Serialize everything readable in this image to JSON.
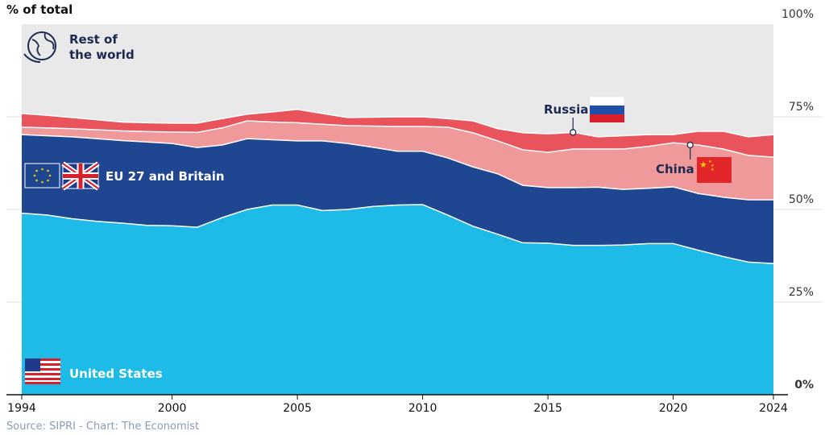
{
  "chart_data": {
    "type": "area",
    "stacked": true,
    "normalized": true,
    "title": "% of total",
    "source": "Source: SIPRI - Chart: The Economist",
    "x": [
      1994,
      1995,
      1996,
      1997,
      1998,
      1999,
      2000,
      2001,
      2002,
      2003,
      2004,
      2005,
      2006,
      2007,
      2008,
      2009,
      2010,
      2011,
      2012,
      2013,
      2014,
      2015,
      2016,
      2017,
      2018,
      2019,
      2020,
      2021,
      2022,
      2023,
      2024
    ],
    "x_ticks": [
      "1994",
      "2000",
      "2005",
      "2010",
      "2015",
      "2020",
      "2024"
    ],
    "y_ticks": [
      "100%",
      "75%",
      "50%",
      "25%",
      "0%"
    ],
    "ylim": [
      0,
      100
    ],
    "series": [
      {
        "name": "United States",
        "color": "#1ebbe9",
        "values": [
          49,
          48.5,
          47.5,
          46.8,
          46.3,
          45.7,
          45.6,
          45.2,
          47.8,
          50,
          51.2,
          51.2,
          49.7,
          50,
          50.8,
          51.2,
          51.3,
          48.5,
          45.5,
          43.3,
          41,
          40.9,
          40.3,
          40.3,
          40.4,
          40.8,
          40.8,
          39,
          37.3,
          35.8,
          35.4
        ]
      },
      {
        "name": "EU 27 and Britain",
        "color": "#1f4691",
        "values": [
          21.2,
          21.4,
          22.1,
          22.3,
          22.3,
          22.5,
          22.2,
          21.5,
          19.6,
          19.1,
          17.6,
          17.3,
          18.8,
          17.8,
          16,
          14.5,
          14.4,
          15.4,
          16,
          16.3,
          15.5,
          15,
          15.6,
          15.7,
          15,
          14.9,
          15.3,
          15.3,
          16,
          16.8,
          17.2
        ]
      },
      {
        "name": "China",
        "color": "#f0999b",
        "values": [
          2,
          2.1,
          2.2,
          2.4,
          2.6,
          2.8,
          3.1,
          4.1,
          4.6,
          4.8,
          4.8,
          4.9,
          4.5,
          4.8,
          5.7,
          6.7,
          6.7,
          8.3,
          9.2,
          8.9,
          9.6,
          9.5,
          10.4,
          10.3,
          10.9,
          11.3,
          11.9,
          13.1,
          13,
          12,
          11.5
        ]
      },
      {
        "name": "Russia",
        "color": "#e8535c",
        "values": [
          3.7,
          3.4,
          3,
          2.7,
          2.4,
          2.4,
          2.4,
          2.5,
          2.5,
          1.8,
          2.7,
          3.6,
          2.9,
          2.2,
          2.4,
          2.6,
          2.6,
          2.3,
          3.2,
          3.3,
          4.6,
          5,
          4.5,
          3.3,
          3.6,
          3.2,
          2.2,
          3.7,
          4.8,
          5,
          6.1
        ]
      },
      {
        "name": "Rest of the world",
        "color": "#e9e9e9",
        "values": [
          24.1,
          24.6,
          25.2,
          25.8,
          26.4,
          26.6,
          26.7,
          26.7,
          25.5,
          24.3,
          23.7,
          23,
          24.1,
          25.2,
          25.1,
          25,
          25,
          25.5,
          26.1,
          28.2,
          29.3,
          29.6,
          29.2,
          30.4,
          30.1,
          29.8,
          29.8,
          28.9,
          28.9,
          30.4,
          29.8
        ]
      }
    ],
    "labels": {
      "rest": [
        "Rest of",
        "the world"
      ],
      "eu": "EU 27 and Britain",
      "us": "United States",
      "russia": "Russia",
      "china": "China"
    },
    "annotation_years": {
      "russia": 2016,
      "china": 2021
    }
  }
}
